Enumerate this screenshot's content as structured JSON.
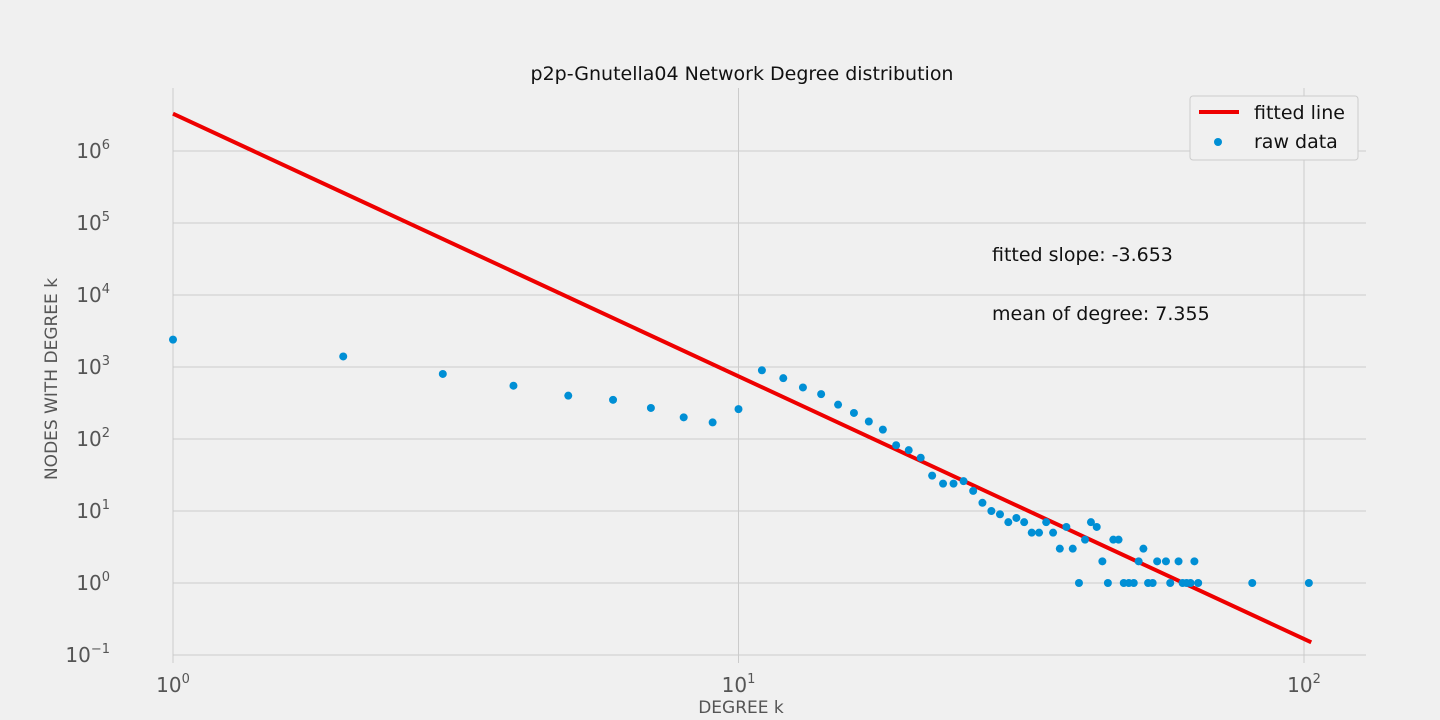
{
  "chart_data": {
    "type": "scatter",
    "title": "p2p-Gnutella04 Network Degree distribution",
    "xlabel": "DEGREE k",
    "ylabel": "NODES WITH DEGREE k",
    "xscale": "log",
    "yscale": "log",
    "xlim": [
      0.8,
      125
    ],
    "ylim": [
      0.06,
      8000000
    ],
    "grid": true,
    "legend_placement": "top-right",
    "x_tick_values": [
      1,
      10,
      100
    ],
    "x_tick_labels": [
      {
        "base": "10",
        "exp": "0"
      },
      {
        "base": "10",
        "exp": "1"
      },
      {
        "base": "10",
        "exp": "2"
      }
    ],
    "y_tick_values": [
      0.1,
      1,
      10,
      100,
      1000,
      10000,
      100000,
      1000000
    ],
    "y_tick_labels": [
      {
        "base": "10",
        "exp": "−1"
      },
      {
        "base": "10",
        "exp": "0"
      },
      {
        "base": "10",
        "exp": "1"
      },
      {
        "base": "10",
        "exp": "2"
      },
      {
        "base": "10",
        "exp": "3"
      },
      {
        "base": "10",
        "exp": "4"
      },
      {
        "base": "10",
        "exp": "5"
      },
      {
        "base": "10",
        "exp": "6"
      }
    ],
    "series": [
      {
        "name": "fitted line",
        "kind": "line",
        "color": "#ee0000",
        "x": [
          1,
          103
        ],
        "y": [
          3300000,
          0.15
        ]
      },
      {
        "name": "raw data",
        "kind": "scatter",
        "color": "#008fd5",
        "points": [
          [
            1,
            2400
          ],
          [
            2,
            1400
          ],
          [
            3,
            800
          ],
          [
            4,
            550
          ],
          [
            5,
            400
          ],
          [
            6,
            350
          ],
          [
            7,
            270
          ],
          [
            8,
            200
          ],
          [
            9,
            170
          ],
          [
            10,
            260
          ],
          [
            11,
            900
          ],
          [
            12,
            700
          ],
          [
            13,
            520
          ],
          [
            14,
            420
          ],
          [
            15,
            300
          ],
          [
            16,
            230
          ],
          [
            17,
            175
          ],
          [
            18,
            135
          ],
          [
            19,
            82
          ],
          [
            20,
            70
          ],
          [
            21,
            55
          ],
          [
            22,
            31
          ],
          [
            23,
            24
          ],
          [
            24,
            24
          ],
          [
            25,
            26
          ],
          [
            26,
            19
          ],
          [
            27,
            13
          ],
          [
            28,
            10
          ],
          [
            29,
            9
          ],
          [
            30,
            7
          ],
          [
            31,
            8
          ],
          [
            32,
            7
          ],
          [
            33,
            5
          ],
          [
            34,
            5
          ],
          [
            35,
            7
          ],
          [
            36,
            5
          ],
          [
            37,
            3
          ],
          [
            38,
            6
          ],
          [
            39,
            3
          ],
          [
            40,
            1
          ],
          [
            41,
            4
          ],
          [
            42,
            7
          ],
          [
            43,
            6
          ],
          [
            44,
            2
          ],
          [
            45,
            1
          ],
          [
            46,
            4
          ],
          [
            47,
            4
          ],
          [
            48,
            1
          ],
          [
            49,
            1
          ],
          [
            50,
            1
          ],
          [
            51,
            2
          ],
          [
            52,
            3
          ],
          [
            53,
            1
          ],
          [
            54,
            1
          ],
          [
            55,
            2
          ],
          [
            57,
            2
          ],
          [
            58,
            1
          ],
          [
            60,
            2
          ],
          [
            61,
            1
          ],
          [
            62,
            1
          ],
          [
            63,
            1
          ],
          [
            64,
            2
          ],
          [
            65,
            1
          ],
          [
            81,
            1
          ],
          [
            102,
            1
          ]
        ]
      }
    ],
    "annotations": [
      "fitted slope: -3.653",
      "mean of degree: 7.355"
    ]
  }
}
